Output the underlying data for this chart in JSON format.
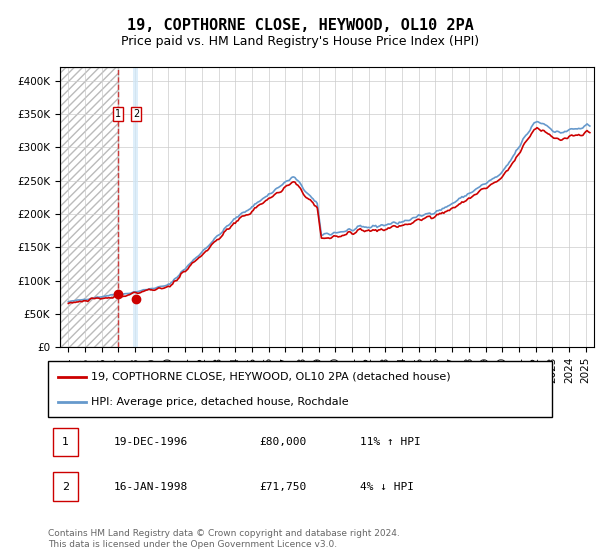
{
  "title": "19, COPTHORNE CLOSE, HEYWOOD, OL10 2PA",
  "subtitle": "Price paid vs. HM Land Registry's House Price Index (HPI)",
  "legend_line1": "19, COPTHORNE CLOSE, HEYWOOD, OL10 2PA (detached house)",
  "legend_line2": "HPI: Average price, detached house, Rochdale",
  "table": [
    {
      "num": 1,
      "date": "19-DEC-1996",
      "price": "£80,000",
      "hpi": "11% ↑ HPI"
    },
    {
      "num": 2,
      "date": "16-JAN-1998",
      "price": "£71,750",
      "hpi": "4% ↓ HPI"
    }
  ],
  "footer": "Contains HM Land Registry data © Crown copyright and database right 2024.\nThis data is licensed under the Open Government Licence v3.0.",
  "red_color": "#cc0000",
  "blue_color": "#6699cc",
  "sale1_x": 1996.97,
  "sale1_y": 80000,
  "sale2_x": 1998.04,
  "sale2_y": 71750,
  "vline1_x": 1996.97,
  "vspan_x1": 1997.9,
  "vspan_x2": 1998.2,
  "ylim": [
    0,
    420000
  ],
  "xlim_start": 1993.5,
  "xlim_end": 2025.5,
  "background_hatch_color": "#dddddd",
  "grid_color": "#cccccc",
  "title_fontsize": 11,
  "subtitle_fontsize": 9,
  "tick_fontsize": 7.5
}
